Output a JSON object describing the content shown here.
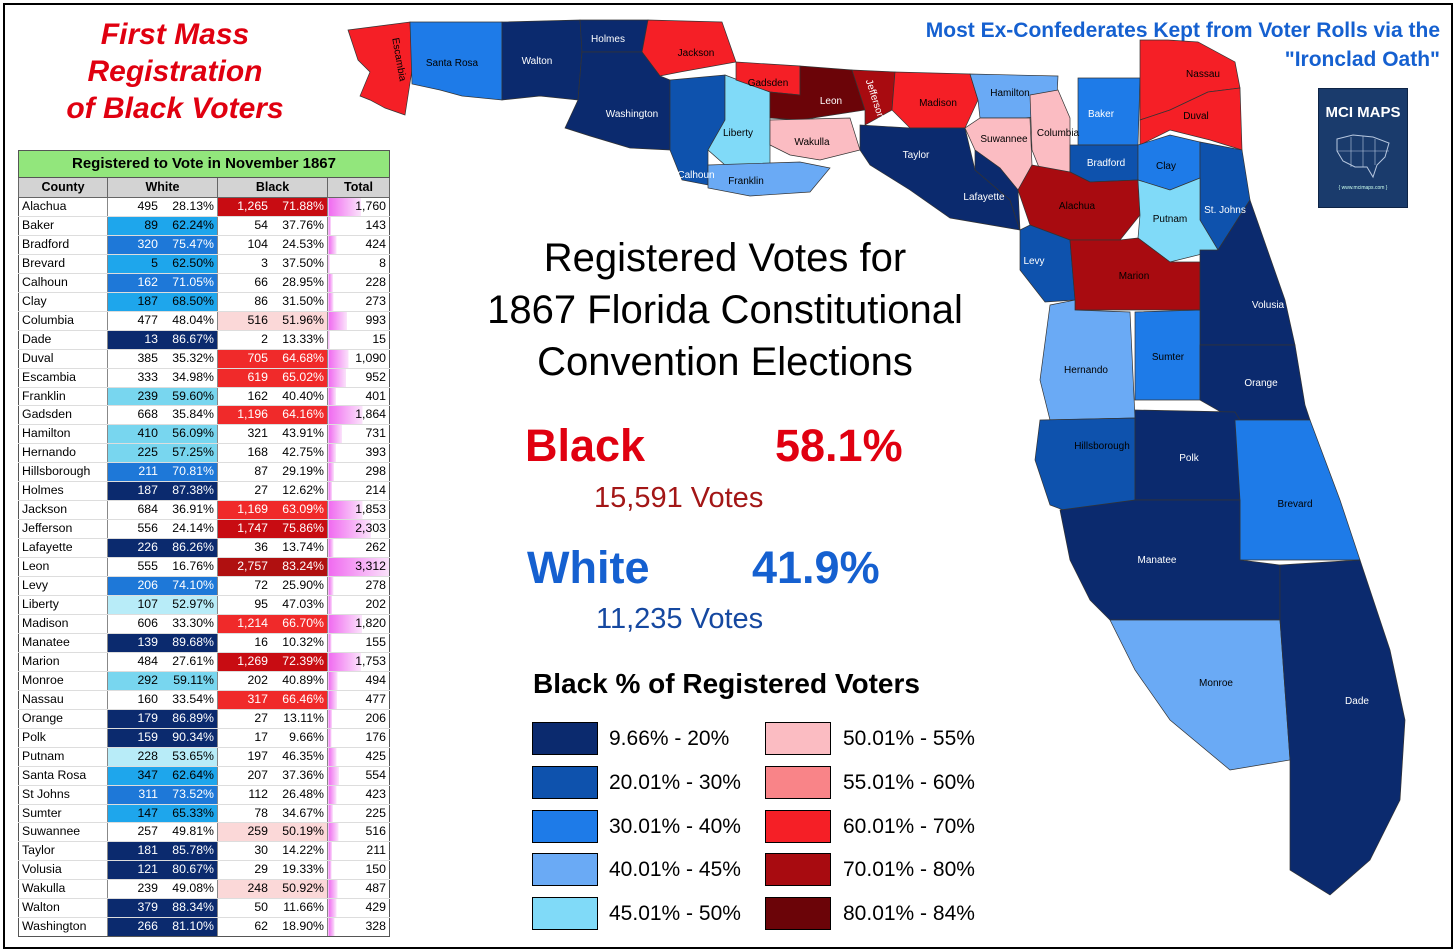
{
  "title_lines": [
    "First Mass",
    "Registration",
    "of Black Voters"
  ],
  "subtitle_lines": [
    "Most Ex-Confederates Kept from Voter Rolls via the",
    "\"Ironclad Oath\""
  ],
  "center_title_lines": [
    "Registered Votes for",
    "1867 Florida Constitutional",
    "Convention Elections"
  ],
  "black_stat": {
    "label": "Black",
    "pct": "58.1%",
    "votes": "15,591  Votes",
    "color": "#e00010"
  },
  "white_stat": {
    "label": "White",
    "pct": "41.9%",
    "votes": "11,235  Votes",
    "color": "#1560d0"
  },
  "logo": {
    "text": "MCI MAPS",
    "url": "{ www.mcimaps.com }",
    "icon": "us-map-icon"
  },
  "table": {
    "band_title": "Registered to Vote in November 1867",
    "headers": [
      "County",
      "White",
      "Black",
      "Total"
    ],
    "rows": [
      {
        "county": "Alachua",
        "white": "495",
        "white_pct": "28.13%",
        "black": "1,265",
        "black_pct": "71.88%",
        "total": "1,760",
        "bin": "b3"
      },
      {
        "county": "Baker",
        "white": "89",
        "white_pct": "62.24%",
        "black": "54",
        "black_pct": "37.76%",
        "total": "143",
        "bin": "w3"
      },
      {
        "county": "Bradford",
        "white": "320",
        "white_pct": "75.47%",
        "black": "104",
        "black_pct": "24.53%",
        "total": "424",
        "bin": "w2"
      },
      {
        "county": "Brevard",
        "white": "5",
        "white_pct": "62.50%",
        "black": "3",
        "black_pct": "37.50%",
        "total": "8",
        "bin": "w3"
      },
      {
        "county": "Calhoun",
        "white": "162",
        "white_pct": "71.05%",
        "black": "66",
        "black_pct": "28.95%",
        "total": "228",
        "bin": "w2"
      },
      {
        "county": "Clay",
        "white": "187",
        "white_pct": "68.50%",
        "black": "86",
        "black_pct": "31.50%",
        "total": "273",
        "bin": "w3"
      },
      {
        "county": "Columbia",
        "white": "477",
        "white_pct": "48.04%",
        "black": "516",
        "black_pct": "51.96%",
        "total": "993",
        "bin": "b1"
      },
      {
        "county": "Dade",
        "white": "13",
        "white_pct": "86.67%",
        "black": "2",
        "black_pct": "13.33%",
        "total": "15",
        "bin": "w1"
      },
      {
        "county": "Duval",
        "white": "385",
        "white_pct": "35.32%",
        "black": "705",
        "black_pct": "64.68%",
        "total": "1,090",
        "bin": "b2"
      },
      {
        "county": "Escambia",
        "white": "333",
        "white_pct": "34.98%",
        "black": "619",
        "black_pct": "65.02%",
        "total": "952",
        "bin": "b2"
      },
      {
        "county": "Franklin",
        "white": "239",
        "white_pct": "59.60%",
        "black": "162",
        "black_pct": "40.40%",
        "total": "401",
        "bin": "w4"
      },
      {
        "county": "Gadsden",
        "white": "668",
        "white_pct": "35.84%",
        "black": "1,196",
        "black_pct": "64.16%",
        "total": "1,864",
        "bin": "b2"
      },
      {
        "county": "Hamilton",
        "white": "410",
        "white_pct": "56.09%",
        "black": "321",
        "black_pct": "43.91%",
        "total": "731",
        "bin": "w4"
      },
      {
        "county": "Hernando",
        "white": "225",
        "white_pct": "57.25%",
        "black": "168",
        "black_pct": "42.75%",
        "total": "393",
        "bin": "w4"
      },
      {
        "county": "Hillsborough",
        "white": "211",
        "white_pct": "70.81%",
        "black": "87",
        "black_pct": "29.19%",
        "total": "298",
        "bin": "w2"
      },
      {
        "county": "Holmes",
        "white": "187",
        "white_pct": "87.38%",
        "black": "27",
        "black_pct": "12.62%",
        "total": "214",
        "bin": "w1"
      },
      {
        "county": "Jackson",
        "white": "684",
        "white_pct": "36.91%",
        "black": "1,169",
        "black_pct": "63.09%",
        "total": "1,853",
        "bin": "b2"
      },
      {
        "county": "Jefferson",
        "white": "556",
        "white_pct": "24.14%",
        "black": "1,747",
        "black_pct": "75.86%",
        "total": "2,303",
        "bin": "b3"
      },
      {
        "county": "Lafayette",
        "white": "226",
        "white_pct": "86.26%",
        "black": "36",
        "black_pct": "13.74%",
        "total": "262",
        "bin": "w1"
      },
      {
        "county": "Leon",
        "white": "555",
        "white_pct": "16.76%",
        "black": "2,757",
        "black_pct": "83.24%",
        "total": "3,312",
        "bin": "b4"
      },
      {
        "county": "Levy",
        "white": "206",
        "white_pct": "74.10%",
        "black": "72",
        "black_pct": "25.90%",
        "total": "278",
        "bin": "w2"
      },
      {
        "county": "Liberty",
        "white": "107",
        "white_pct": "52.97%",
        "black": "95",
        "black_pct": "47.03%",
        "total": "202",
        "bin": "w5"
      },
      {
        "county": "Madison",
        "white": "606",
        "white_pct": "33.30%",
        "black": "1,214",
        "black_pct": "66.70%",
        "total": "1,820",
        "bin": "b2"
      },
      {
        "county": "Manatee",
        "white": "139",
        "white_pct": "89.68%",
        "black": "16",
        "black_pct": "10.32%",
        "total": "155",
        "bin": "w1"
      },
      {
        "county": "Marion",
        "white": "484",
        "white_pct": "27.61%",
        "black": "1,269",
        "black_pct": "72.39%",
        "total": "1,753",
        "bin": "b3"
      },
      {
        "county": "Monroe",
        "white": "292",
        "white_pct": "59.11%",
        "black": "202",
        "black_pct": "40.89%",
        "total": "494",
        "bin": "w4"
      },
      {
        "county": "Nassau",
        "white": "160",
        "white_pct": "33.54%",
        "black": "317",
        "black_pct": "66.46%",
        "total": "477",
        "bin": "b2"
      },
      {
        "county": "Orange",
        "white": "179",
        "white_pct": "86.89%",
        "black": "27",
        "black_pct": "13.11%",
        "total": "206",
        "bin": "w1"
      },
      {
        "county": "Polk",
        "white": "159",
        "white_pct": "90.34%",
        "black": "17",
        "black_pct": "9.66%",
        "total": "176",
        "bin": "w1"
      },
      {
        "county": "Putnam",
        "white": "228",
        "white_pct": "53.65%",
        "black": "197",
        "black_pct": "46.35%",
        "total": "425",
        "bin": "w5"
      },
      {
        "county": "Santa Rosa",
        "white": "347",
        "white_pct": "62.64%",
        "black": "207",
        "black_pct": "37.36%",
        "total": "554",
        "bin": "w3"
      },
      {
        "county": "St Johns",
        "white": "311",
        "white_pct": "73.52%",
        "black": "112",
        "black_pct": "26.48%",
        "total": "423",
        "bin": "w2"
      },
      {
        "county": "Sumter",
        "white": "147",
        "white_pct": "65.33%",
        "black": "78",
        "black_pct": "34.67%",
        "total": "225",
        "bin": "w3"
      },
      {
        "county": "Suwannee",
        "white": "257",
        "white_pct": "49.81%",
        "black": "259",
        "black_pct": "50.19%",
        "total": "516",
        "bin": "b1"
      },
      {
        "county": "Taylor",
        "white": "181",
        "white_pct": "85.78%",
        "black": "30",
        "black_pct": "14.22%",
        "total": "211",
        "bin": "w1"
      },
      {
        "county": "Volusia",
        "white": "121",
        "white_pct": "80.67%",
        "black": "29",
        "black_pct": "19.33%",
        "total": "150",
        "bin": "w1"
      },
      {
        "county": "Wakulla",
        "white": "239",
        "white_pct": "49.08%",
        "black": "248",
        "black_pct": "50.92%",
        "total": "487",
        "bin": "b1"
      },
      {
        "county": "Walton",
        "white": "379",
        "white_pct": "88.34%",
        "black": "50",
        "black_pct": "11.66%",
        "total": "429",
        "bin": "w1"
      },
      {
        "county": "Washington",
        "white": "266",
        "white_pct": "81.10%",
        "black": "62",
        "black_pct": "18.90%",
        "total": "328",
        "bin": "w1"
      }
    ]
  },
  "legend": {
    "title": "Black % of Registered Voters",
    "items": [
      {
        "key": "w1",
        "label": "9.66% - 20%",
        "color": "#0b2a6e"
      },
      {
        "key": "w2",
        "label": "20.01% - 30%",
        "color": "#0e52ad"
      },
      {
        "key": "w3",
        "label": "30.01% - 40%",
        "color": "#1e7be8"
      },
      {
        "key": "w4",
        "label": "40.01% - 45%",
        "color": "#6aaaf5"
      },
      {
        "key": "w5",
        "label": "45.01% - 50%",
        "color": "#80daf8"
      },
      {
        "key": "b1",
        "label": "50.01% - 55%",
        "color": "#fbbcc2"
      },
      {
        "key": "b2",
        "label": "55.01% - 60%",
        "color": "#f98488"
      },
      {
        "key": "b2b",
        "label": "60.01% - 70%",
        "color": "#f51f26"
      },
      {
        "key": "b3",
        "label": "70.01% - 80%",
        "color": "#a80b10"
      },
      {
        "key": "b4",
        "label": "80.01% - 84%",
        "color": "#6b0408"
      }
    ]
  },
  "bin_colors": {
    "w1": "#0b2a6e",
    "w2": "#0e52ad",
    "w3": "#1e7be8",
    "w4": "#6aaaf5",
    "w5": "#80daf8",
    "b1": "#fbbcc2",
    "b2": "#f51f26",
    "b3": "#a80b10",
    "b4": "#6b0408"
  },
  "cell_colors": {
    "w1": "#0b2a6e",
    "w2": "#1e78d8",
    "w3": "#1ea6ec",
    "w4": "#78d6ef",
    "w5": "#b8ecf8",
    "b1": "#fbd8d8",
    "b2": "#f02a2a",
    "b3": "#c80c12",
    "b4": "#b01010",
    "total_bar": "#f06af0"
  },
  "map_labels": {
    "escambia": "Escambia",
    "santa_rosa": "Santa Rosa",
    "walton": "Walton",
    "holmes": "Holmes",
    "jackson": "Jackson",
    "washington": "Washington",
    "calhoun": "Calhoun",
    "liberty": "Liberty",
    "franklin": "Franklin",
    "gadsden": "Gadsden",
    "leon": "Leon",
    "wakulla": "Wakulla",
    "jefferson": "Jefferson",
    "madison": "Madison",
    "taylor": "Taylor",
    "hamilton": "Hamilton",
    "suwannee": "Suwannee",
    "columbia": "Columbia",
    "lafayette": "Lafayette",
    "baker": "Baker",
    "nassau": "Nassau",
    "duval": "Duval",
    "bradford": "Bradford",
    "clay": "Clay",
    "st_johns": "St. Johns",
    "alachua": "Alachua",
    "putnam": "Putnam",
    "levy": "Levy",
    "marion": "Marion",
    "volusia": "Volusia",
    "hernando": "Hernando",
    "sumter": "Sumter",
    "orange": "Orange",
    "hillsborough": "Hillsborough",
    "polk": "Polk",
    "brevard": "Brevard",
    "manatee": "Manatee",
    "monroe": "Monroe",
    "dade": "Dade"
  }
}
